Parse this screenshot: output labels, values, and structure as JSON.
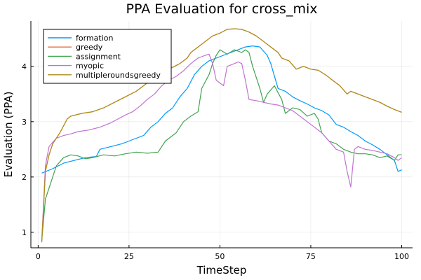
{
  "chart_data": {
    "type": "line",
    "title": "PPA Evaluation for cross_mix",
    "xlabel": "TimeStep",
    "ylabel": "Evaluation (PPA)",
    "xlim": [
      -2,
      103
    ],
    "ylim": [
      0.72,
      4.82
    ],
    "xticks": [
      0,
      25,
      50,
      75,
      100
    ],
    "yticks": [
      1,
      2,
      3,
      4
    ],
    "grid": true,
    "legend_position": "top-left",
    "series": [
      {
        "name": "formation",
        "color": "#009AFA",
        "points": [
          [
            1,
            2.07
          ],
          [
            4,
            2.15
          ],
          [
            7,
            2.25
          ],
          [
            10,
            2.3
          ],
          [
            13,
            2.35
          ],
          [
            16,
            2.37
          ],
          [
            17,
            2.5
          ],
          [
            20,
            2.55
          ],
          [
            23,
            2.6
          ],
          [
            25,
            2.65
          ],
          [
            27,
            2.7
          ],
          [
            29,
            2.75
          ],
          [
            31,
            2.9
          ],
          [
            33,
            3.0
          ],
          [
            35,
            3.15
          ],
          [
            37,
            3.25
          ],
          [
            39,
            3.45
          ],
          [
            41,
            3.6
          ],
          [
            43,
            3.85
          ],
          [
            45,
            4.0
          ],
          [
            47,
            4.1
          ],
          [
            49,
            4.15
          ],
          [
            51,
            4.2
          ],
          [
            53,
            4.25
          ],
          [
            55,
            4.3
          ],
          [
            57,
            4.35
          ],
          [
            59,
            4.37
          ],
          [
            61,
            4.35
          ],
          [
            63,
            4.2
          ],
          [
            64,
            4.05
          ],
          [
            66,
            3.6
          ],
          [
            68,
            3.55
          ],
          [
            70,
            3.45
          ],
          [
            72,
            3.38
          ],
          [
            74,
            3.32
          ],
          [
            76,
            3.25
          ],
          [
            78,
            3.2
          ],
          [
            80,
            3.12
          ],
          [
            82,
            2.95
          ],
          [
            84,
            2.9
          ],
          [
            86,
            2.82
          ],
          [
            88,
            2.75
          ],
          [
            90,
            2.65
          ],
          [
            92,
            2.58
          ],
          [
            94,
            2.5
          ],
          [
            96,
            2.4
          ],
          [
            98,
            2.3
          ],
          [
            99,
            2.1
          ],
          [
            100,
            2.13
          ]
        ]
      },
      {
        "name": "greedy",
        "color": "#E36F47",
        "points": [
          [
            1,
            0.82
          ],
          [
            2,
            2.1
          ],
          [
            3,
            2.4
          ],
          [
            4,
            2.6
          ],
          [
            6,
            2.8
          ],
          [
            8,
            3.05
          ],
          [
            9,
            3.1
          ],
          [
            12,
            3.15
          ],
          [
            15,
            3.18
          ],
          [
            18,
            3.25
          ],
          [
            21,
            3.35
          ],
          [
            24,
            3.45
          ],
          [
            27,
            3.55
          ],
          [
            30,
            3.7
          ],
          [
            33,
            3.85
          ],
          [
            36,
            3.95
          ],
          [
            39,
            4.05
          ],
          [
            41,
            4.15
          ],
          [
            42,
            4.25
          ],
          [
            44,
            4.35
          ],
          [
            46,
            4.45
          ],
          [
            48,
            4.55
          ],
          [
            50,
            4.6
          ],
          [
            52,
            4.67
          ],
          [
            54,
            4.68
          ],
          [
            56,
            4.67
          ],
          [
            58,
            4.62
          ],
          [
            60,
            4.55
          ],
          [
            62,
            4.45
          ],
          [
            64,
            4.35
          ],
          [
            66,
            4.25
          ],
          [
            67,
            4.15
          ],
          [
            69,
            4.1
          ],
          [
            71,
            3.95
          ],
          [
            73,
            4.0
          ],
          [
            75,
            3.95
          ],
          [
            77,
            3.93
          ],
          [
            79,
            3.85
          ],
          [
            81,
            3.75
          ],
          [
            83,
            3.65
          ],
          [
            85,
            3.5
          ],
          [
            86,
            3.55
          ],
          [
            88,
            3.5
          ],
          [
            90,
            3.45
          ],
          [
            92,
            3.4
          ],
          [
            94,
            3.35
          ],
          [
            96,
            3.28
          ],
          [
            98,
            3.22
          ],
          [
            100,
            3.17
          ]
        ]
      },
      {
        "name": "assignment",
        "color": "#3EA44E",
        "points": [
          [
            1,
            0.85
          ],
          [
            2,
            1.6
          ],
          [
            3,
            1.8
          ],
          [
            5,
            2.2
          ],
          [
            7,
            2.35
          ],
          [
            9,
            2.4
          ],
          [
            11,
            2.38
          ],
          [
            13,
            2.33
          ],
          [
            15,
            2.35
          ],
          [
            18,
            2.4
          ],
          [
            21,
            2.38
          ],
          [
            24,
            2.42
          ],
          [
            27,
            2.45
          ],
          [
            30,
            2.43
          ],
          [
            33,
            2.45
          ],
          [
            35,
            2.65
          ],
          [
            38,
            2.8
          ],
          [
            40,
            3.0
          ],
          [
            42,
            3.1
          ],
          [
            44,
            3.18
          ],
          [
            45,
            3.6
          ],
          [
            47,
            3.85
          ],
          [
            48,
            4.05
          ],
          [
            49,
            4.2
          ],
          [
            50,
            4.3
          ],
          [
            52,
            4.22
          ],
          [
            54,
            4.3
          ],
          [
            56,
            4.25
          ],
          [
            57,
            4.3
          ],
          [
            58,
            4.25
          ],
          [
            59,
            4.0
          ],
          [
            61,
            3.6
          ],
          [
            62,
            3.35
          ],
          [
            63,
            3.5
          ],
          [
            65,
            3.65
          ],
          [
            67,
            3.4
          ],
          [
            68,
            3.15
          ],
          [
            70,
            3.25
          ],
          [
            72,
            3.22
          ],
          [
            74,
            3.1
          ],
          [
            76,
            3.15
          ],
          [
            77,
            3.05
          ],
          [
            78,
            2.8
          ],
          [
            80,
            2.65
          ],
          [
            82,
            2.6
          ],
          [
            84,
            2.5
          ],
          [
            86,
            2.45
          ],
          [
            88,
            2.42
          ],
          [
            90,
            2.42
          ],
          [
            92,
            2.4
          ],
          [
            94,
            2.35
          ],
          [
            96,
            2.38
          ],
          [
            98,
            2.3
          ],
          [
            99,
            2.4
          ],
          [
            100,
            2.4
          ]
        ]
      },
      {
        "name": "myopic",
        "color": "#C271D2",
        "points": [
          [
            1,
            0.85
          ],
          [
            2,
            2.2
          ],
          [
            3,
            2.55
          ],
          [
            5,
            2.7
          ],
          [
            7,
            2.75
          ],
          [
            9,
            2.78
          ],
          [
            11,
            2.82
          ],
          [
            14,
            2.85
          ],
          [
            17,
            2.9
          ],
          [
            20,
            2.98
          ],
          [
            22,
            3.05
          ],
          [
            24,
            3.12
          ],
          [
            26,
            3.18
          ],
          [
            28,
            3.28
          ],
          [
            30,
            3.4
          ],
          [
            32,
            3.5
          ],
          [
            34,
            3.65
          ],
          [
            36,
            3.75
          ],
          [
            38,
            3.82
          ],
          [
            40,
            3.92
          ],
          [
            42,
            4.05
          ],
          [
            44,
            4.15
          ],
          [
            46,
            4.2
          ],
          [
            47,
            4.22
          ],
          [
            48,
            4.05
          ],
          [
            49,
            3.75
          ],
          [
            51,
            3.65
          ],
          [
            52,
            4.0
          ],
          [
            54,
            4.05
          ],
          [
            55,
            4.08
          ],
          [
            56,
            4.05
          ],
          [
            57,
            3.75
          ],
          [
            58,
            3.4
          ],
          [
            60,
            3.38
          ],
          [
            62,
            3.35
          ],
          [
            64,
            3.32
          ],
          [
            66,
            3.3
          ],
          [
            68,
            3.25
          ],
          [
            70,
            3.2
          ],
          [
            72,
            3.1
          ],
          [
            74,
            3.0
          ],
          [
            76,
            2.9
          ],
          [
            78,
            2.8
          ],
          [
            80,
            2.65
          ],
          [
            82,
            2.5
          ],
          [
            84,
            2.45
          ],
          [
            85,
            2.1
          ],
          [
            86,
            1.82
          ],
          [
            87,
            2.5
          ],
          [
            88,
            2.55
          ],
          [
            90,
            2.5
          ],
          [
            92,
            2.48
          ],
          [
            94,
            2.45
          ],
          [
            96,
            2.42
          ],
          [
            98,
            2.35
          ],
          [
            99,
            2.3
          ],
          [
            100,
            2.35
          ]
        ]
      },
      {
        "name": "multipleroundsgreedy",
        "color": "#AC8D18",
        "points": [
          [
            1,
            0.82
          ],
          [
            2,
            2.1
          ],
          [
            3,
            2.4
          ],
          [
            4,
            2.6
          ],
          [
            6,
            2.8
          ],
          [
            8,
            3.05
          ],
          [
            9,
            3.1
          ],
          [
            12,
            3.15
          ],
          [
            15,
            3.18
          ],
          [
            18,
            3.25
          ],
          [
            21,
            3.35
          ],
          [
            24,
            3.45
          ],
          [
            27,
            3.55
          ],
          [
            30,
            3.7
          ],
          [
            33,
            3.85
          ],
          [
            36,
            3.95
          ],
          [
            39,
            4.05
          ],
          [
            41,
            4.15
          ],
          [
            42,
            4.25
          ],
          [
            44,
            4.35
          ],
          [
            46,
            4.45
          ],
          [
            48,
            4.55
          ],
          [
            50,
            4.6
          ],
          [
            52,
            4.67
          ],
          [
            54,
            4.68
          ],
          [
            56,
            4.67
          ],
          [
            58,
            4.62
          ],
          [
            60,
            4.55
          ],
          [
            62,
            4.45
          ],
          [
            64,
            4.35
          ],
          [
            66,
            4.25
          ],
          [
            67,
            4.15
          ],
          [
            69,
            4.1
          ],
          [
            71,
            3.95
          ],
          [
            73,
            4.0
          ],
          [
            75,
            3.95
          ],
          [
            77,
            3.93
          ],
          [
            79,
            3.85
          ],
          [
            81,
            3.75
          ],
          [
            83,
            3.65
          ],
          [
            85,
            3.5
          ],
          [
            86,
            3.55
          ],
          [
            88,
            3.5
          ],
          [
            90,
            3.45
          ],
          [
            92,
            3.4
          ],
          [
            94,
            3.35
          ],
          [
            96,
            3.28
          ],
          [
            98,
            3.22
          ],
          [
            100,
            3.17
          ]
        ]
      }
    ]
  }
}
